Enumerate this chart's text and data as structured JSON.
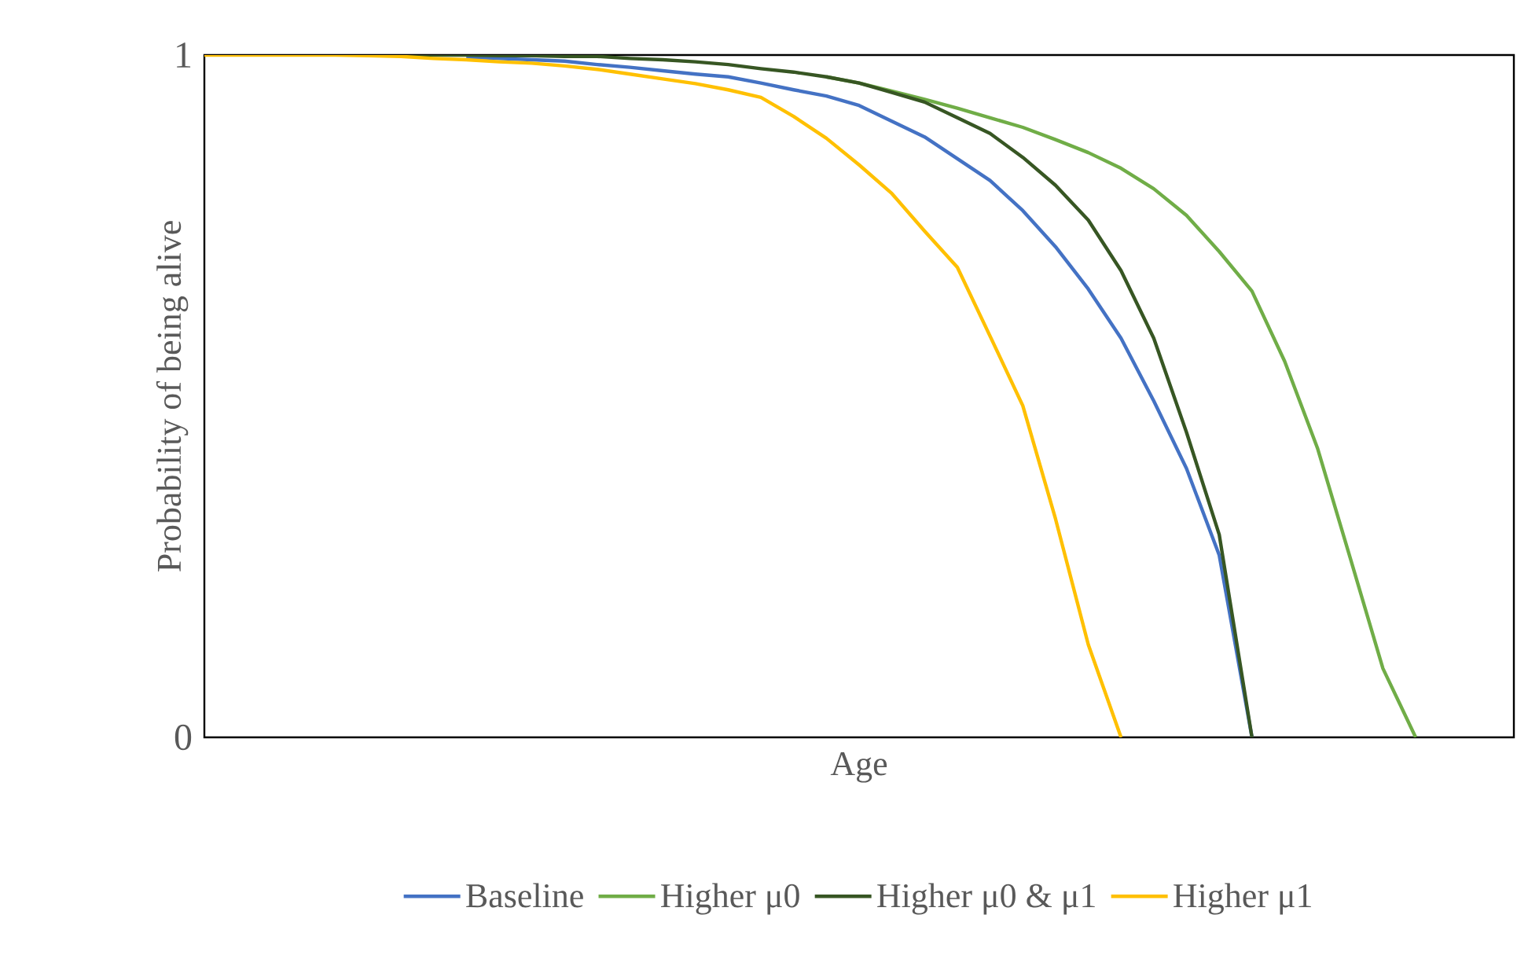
{
  "chart_data": {
    "type": "line",
    "xlabel": "Age",
    "ylabel": "Probability of being alive",
    "categories": [
      null,
      null,
      null,
      null,
      null,
      null,
      null,
      null,
      null,
      null,
      null,
      null,
      null,
      null,
      null,
      null,
      null,
      null,
      null,
      null,
      null,
      null,
      null,
      null,
      null,
      null,
      null,
      null,
      null,
      null,
      null,
      null,
      null,
      null,
      null,
      null,
      null,
      null,
      null,
      null,
      null
    ],
    "ylim": [
      0,
      1
    ],
    "yticks": [
      0,
      1
    ],
    "legend": "bottom",
    "marker": "none",
    "line_style": "solid",
    "series": [
      {
        "name": "Baseline",
        "color": "#4472c4",
        "values": [
          null,
          null,
          null,
          null,
          null,
          null,
          null,
          null,
          0.997,
          0.995,
          0.993,
          0.991,
          0.986,
          0.982,
          0.977,
          0.972,
          0.968,
          0.959,
          0.949,
          0.94,
          0.926,
          0.903,
          0.88,
          0.848,
          0.816,
          0.772,
          0.719,
          0.657,
          0.585,
          0.493,
          0.394,
          0.267,
          0,
          null,
          null,
          null,
          null,
          null,
          null,
          null,
          null
        ]
      },
      {
        "name": "Higher μ0",
        "color": "#70ad47",
        "values": [
          null,
          null,
          null,
          null,
          null,
          null,
          null,
          null,
          null,
          null,
          null,
          null,
          null,
          null,
          null,
          null,
          null,
          null,
          null,
          0.968,
          0.959,
          0.947,
          0.935,
          0.922,
          0.908,
          0.894,
          0.876,
          0.857,
          0.834,
          0.804,
          0.765,
          0.712,
          0.654,
          0.551,
          0.424,
          0.263,
          0.101,
          0,
          null,
          null,
          null
        ]
      },
      {
        "name": "Higher μ0 & μ1",
        "color": "#375623",
        "values": [
          null,
          null,
          null,
          null,
          null,
          1,
          1,
          1,
          1,
          0.999,
          0.999,
          0.998,
          0.998,
          0.995,
          0.993,
          0.99,
          0.986,
          0.98,
          0.975,
          0.968,
          0.959,
          0.945,
          0.931,
          0.908,
          0.885,
          0.85,
          0.809,
          0.758,
          0.684,
          0.585,
          0.447,
          0.297,
          0,
          null,
          null,
          null,
          null,
          null,
          null,
          null,
          null
        ]
      },
      {
        "name": "Higher μ1",
        "color": "#ffc000",
        "values": [
          1,
          1,
          1,
          1,
          1,
          0.999,
          0.998,
          0.995,
          0.993,
          0.99,
          0.988,
          0.984,
          0.979,
          0.972,
          0.965,
          0.958,
          0.949,
          0.938,
          0.91,
          0.878,
          0.839,
          0.797,
          0.742,
          0.689,
          0.588,
          0.486,
          0.32,
          0.136,
          0,
          null,
          null,
          null,
          null,
          null,
          null,
          null,
          null,
          null,
          null,
          null,
          null
        ]
      }
    ]
  }
}
